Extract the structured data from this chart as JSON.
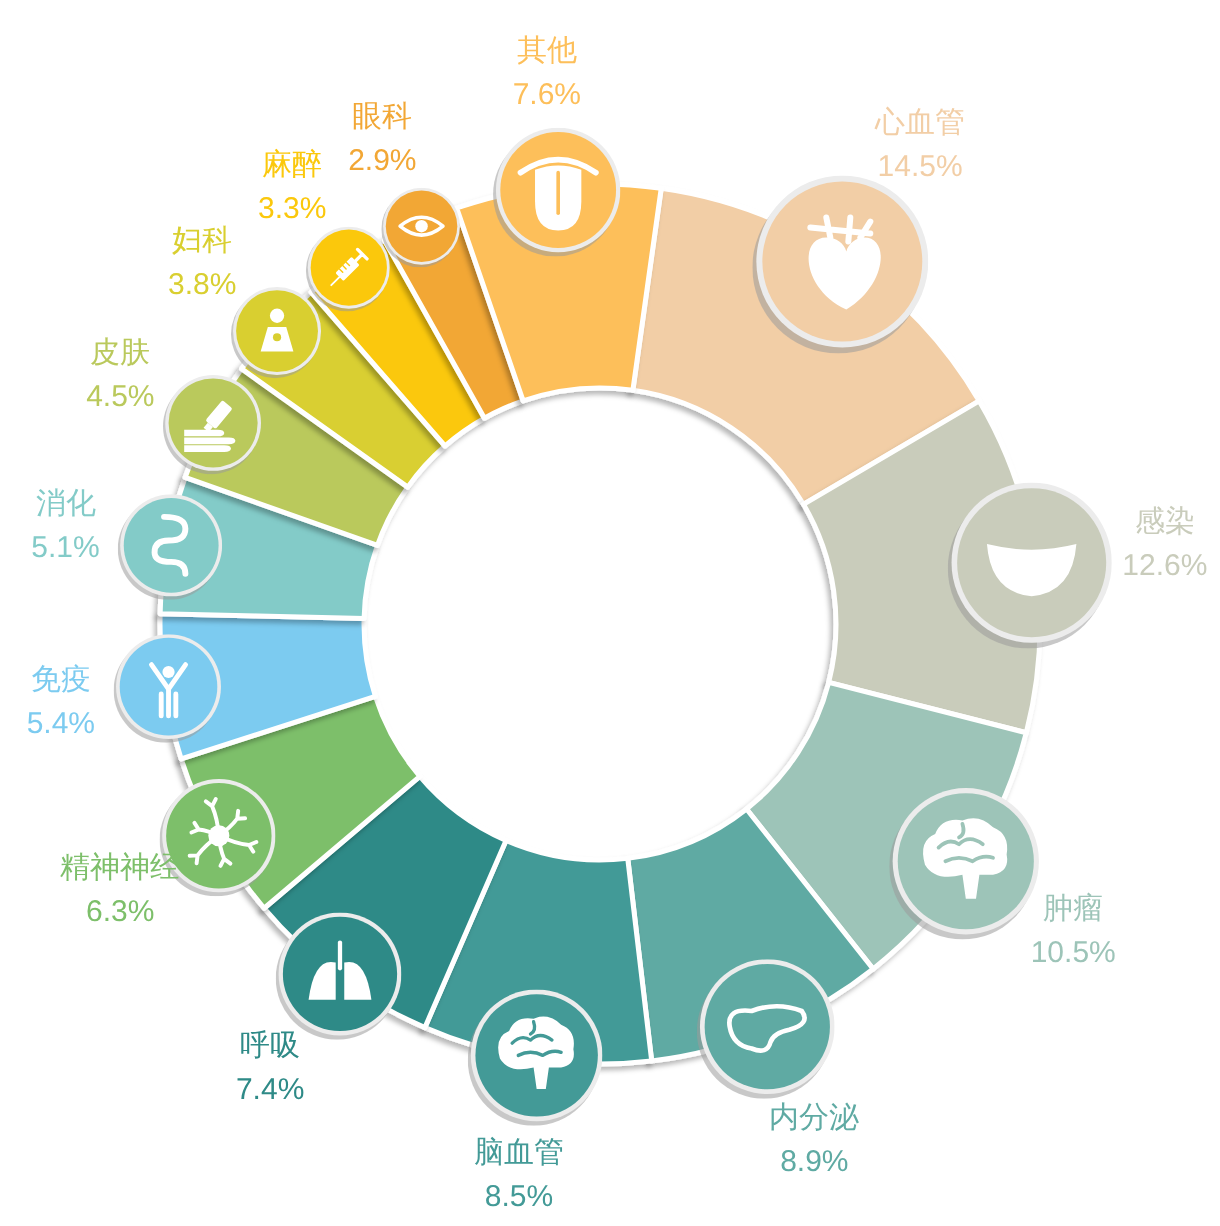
{
  "chart_data": {
    "type": "donut",
    "categories": [
      "心血管",
      "感染",
      "肿瘤",
      "内分泌",
      "脑血管",
      "呼吸",
      "精神神经",
      "免疫",
      "消化",
      "皮肤",
      "妇科",
      "麻醉",
      "眼科",
      "其他"
    ],
    "values": [
      14.5,
      12.6,
      10.5,
      8.9,
      8.5,
      7.4,
      6.3,
      5.4,
      5.1,
      4.5,
      3.8,
      3.3,
      2.9,
      7.6
    ],
    "value_labels": [
      "14.5%",
      "12.6%",
      "10.5%",
      "8.9%",
      "8.5%",
      "7.4%",
      "6.3%",
      "5.4%",
      "5.1%",
      "4.5%",
      "3.8%",
      "3.3%",
      "2.9%",
      "7.6%"
    ],
    "colors": [
      "#f2cea6",
      "#c9ccbb",
      "#9dc4b8",
      "#5faaa3",
      "#439a97",
      "#2e8a87",
      "#7dbf6a",
      "#7ccbf0",
      "#83cbc8",
      "#bac95c",
      "#d9cf30",
      "#fbc80c",
      "#f2a735",
      "#fdbf5a"
    ]
  }
}
